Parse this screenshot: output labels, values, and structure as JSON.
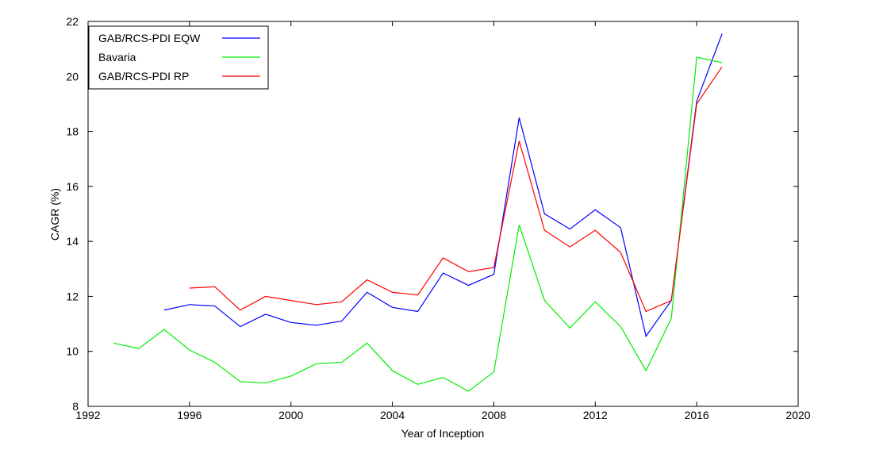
{
  "chart_data": {
    "type": "line",
    "x_label": "Year of Inception",
    "y_label": "CAGR (%)",
    "x": [
      1993,
      1994,
      1995,
      1996,
      1997,
      1998,
      1999,
      2000,
      2001,
      2002,
      2003,
      2004,
      2005,
      2006,
      2007,
      2008,
      2009,
      2010,
      2011,
      2012,
      2013,
      2014,
      2015,
      2016,
      2017
    ],
    "series": [
      {
        "name": "GAB/RCS-PDI EQW",
        "color": "#0000ff",
        "values": [
          null,
          null,
          11.5,
          11.7,
          11.65,
          10.9,
          11.35,
          11.05,
          10.95,
          11.1,
          12.15,
          11.6,
          11.45,
          12.85,
          12.4,
          12.8,
          18.5,
          15.0,
          14.45,
          15.15,
          14.5,
          10.55,
          11.85,
          19.1,
          21.55
        ]
      },
      {
        "name": "Bavaria",
        "color": "#00ee00",
        "values": [
          10.3,
          10.1,
          10.8,
          10.05,
          9.6,
          8.9,
          8.85,
          9.1,
          9.55,
          9.6,
          10.3,
          9.3,
          8.8,
          9.05,
          8.55,
          9.25,
          14.6,
          11.85,
          10.85,
          11.8,
          10.9,
          9.3,
          11.2,
          20.7,
          20.5
        ]
      },
      {
        "name": "GAB/RCS-PDI RP",
        "color": "#ff0000",
        "values": [
          null,
          null,
          null,
          12.3,
          12.35,
          11.5,
          12.0,
          11.85,
          11.7,
          11.8,
          12.6,
          12.15,
          12.05,
          13.4,
          12.9,
          13.05,
          17.65,
          14.4,
          13.8,
          14.4,
          13.6,
          11.45,
          11.85,
          19.0,
          20.35
        ]
      }
    ],
    "xlim": [
      1992,
      2020
    ],
    "xticks": [
      1992,
      1996,
      2000,
      2004,
      2008,
      2012,
      2016,
      2020
    ],
    "ylim": [
      8,
      22
    ],
    "yticks": [
      8,
      10,
      12,
      14,
      16,
      18,
      20,
      22
    ],
    "legend": "upper-left"
  }
}
